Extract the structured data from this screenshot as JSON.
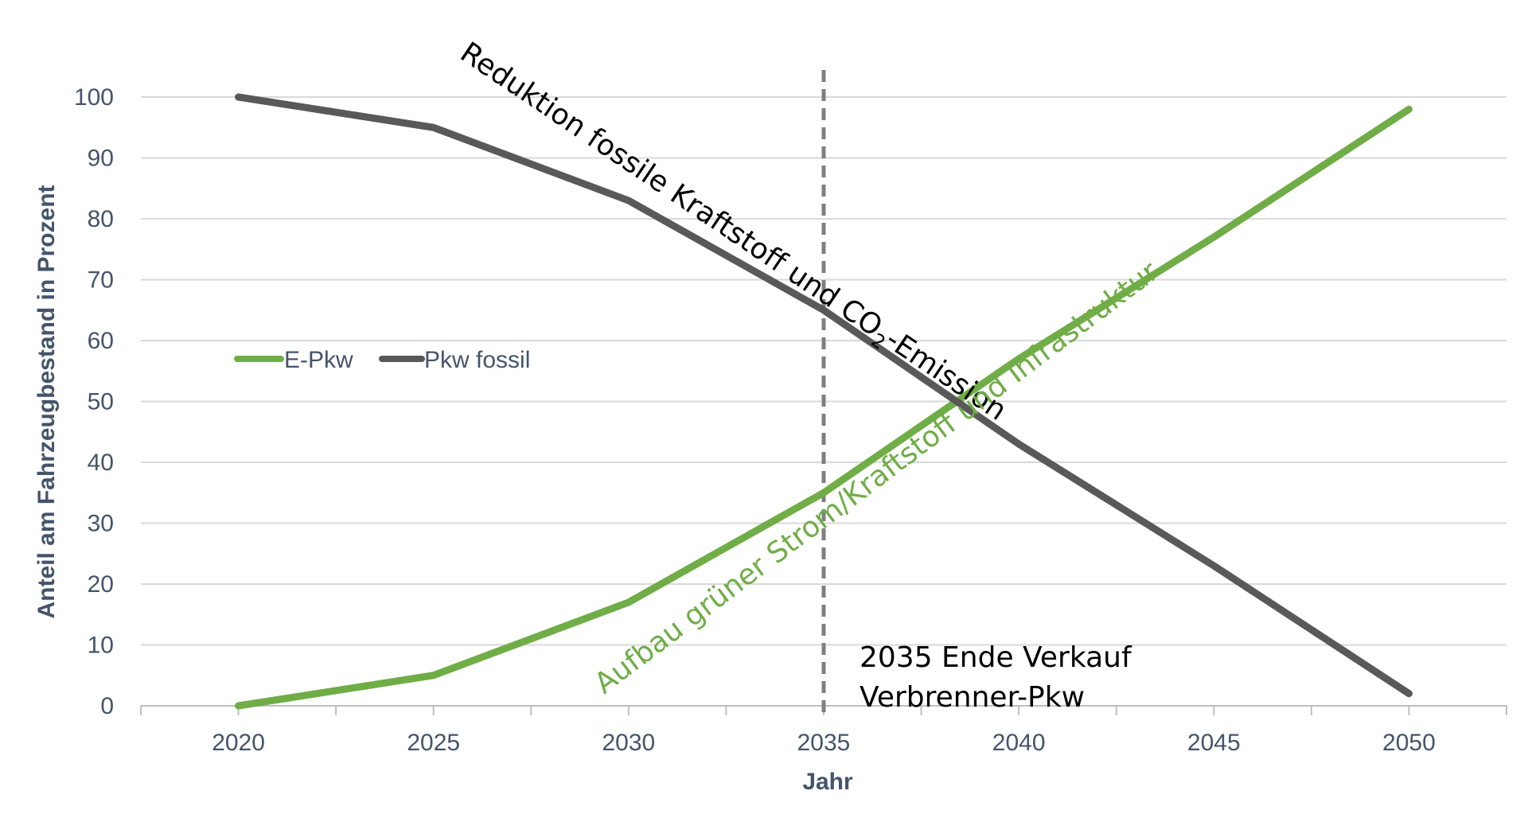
{
  "chart_data": {
    "type": "line",
    "x": [
      2020,
      2025,
      2030,
      2035,
      2040,
      2045,
      2050
    ],
    "x_ticks": [
      "2020",
      "2025",
      "2030",
      "2035",
      "2040",
      "2045",
      "2050"
    ],
    "y_ticks": [
      "0",
      "10",
      "20",
      "30",
      "40",
      "50",
      "60",
      "70",
      "80",
      "90",
      "100"
    ],
    "ylim": [
      0,
      100
    ],
    "xlabel": "Jahr",
    "ylabel": "Anteil am Fahrzeugbestand in Prozent",
    "grid": true,
    "legend_position": "middle-left",
    "series": [
      {
        "name": "E-Pkw",
        "color": "#70ad47",
        "values": [
          0,
          5,
          17,
          35,
          57,
          77,
          98
        ]
      },
      {
        "name": "Pkw fossil",
        "color": "#595959",
        "values": [
          100,
          95,
          83,
          65,
          43,
          23,
          2
        ]
      }
    ],
    "reference_line": {
      "x": 2035,
      "style": "dashed",
      "color": "#7f7f7f"
    },
    "annotations": {
      "fossil_prefix": "Reduktion fossile Kraftstoff und CO",
      "fossil_subscript": "2",
      "fossil_suffix": "-Emission",
      "green": "Aufbau grüner Strom/Kraftstoff und Infrastruktur",
      "note_line1": "2035 Ende Verkauf",
      "note_line2": "Verbrenner-Pkw"
    }
  }
}
